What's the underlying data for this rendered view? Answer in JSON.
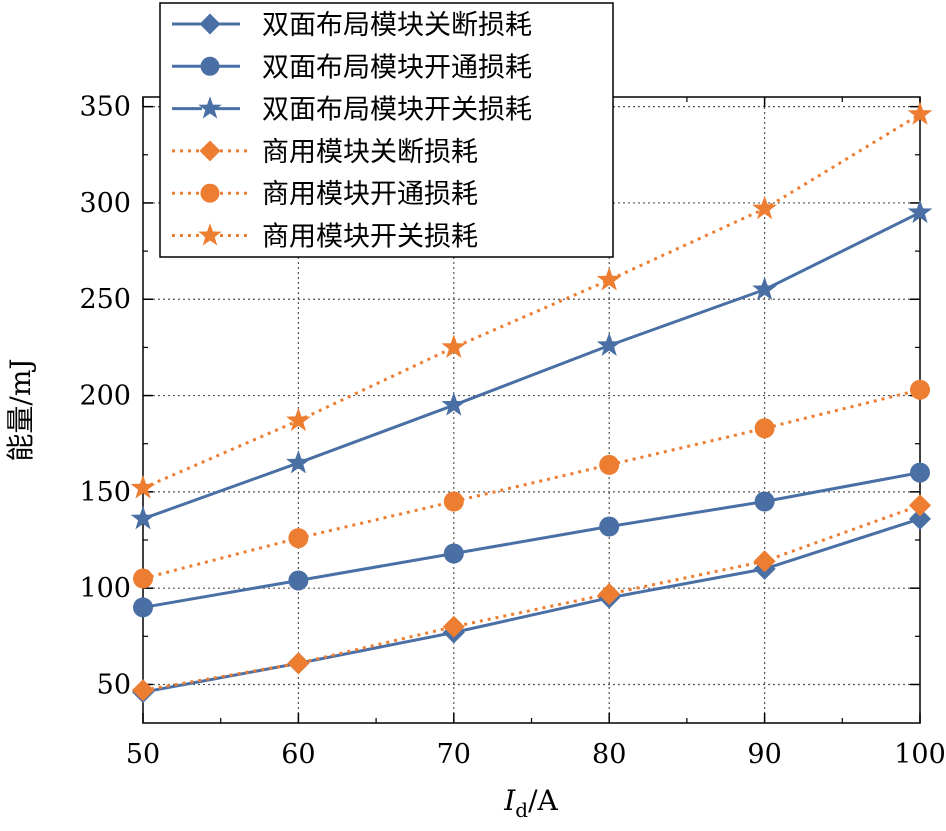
{
  "chart_data": {
    "type": "line",
    "x": [
      50,
      60,
      70,
      80,
      90,
      100
    ],
    "xlim": [
      50,
      100
    ],
    "ylim": [
      30,
      355
    ],
    "xticks": [
      50,
      60,
      70,
      80,
      90,
      100
    ],
    "yticks": [
      50,
      100,
      150,
      200,
      250,
      300,
      350
    ],
    "xlabel_main": "I",
    "xlabel_sub": "d",
    "xlabel_unit": "/A",
    "ylabel": "能量/mJ",
    "grid": true,
    "legend_position": "top-left",
    "series": [
      {
        "name": "双面布局模块关断损耗",
        "color": "#4a6fa5",
        "dash": "solid",
        "marker": "diamond",
        "values": [
          46,
          61,
          77,
          95,
          110,
          136
        ]
      },
      {
        "name": "双面布局模块开通损耗",
        "color": "#4a6fa5",
        "dash": "solid",
        "marker": "circle",
        "values": [
          90,
          104,
          118,
          132,
          145,
          160
        ]
      },
      {
        "name": "双面布局模块开关损耗",
        "color": "#4a6fa5",
        "dash": "solid",
        "marker": "star",
        "values": [
          136,
          165,
          195,
          226,
          255,
          295
        ]
      },
      {
        "name": "商用模块关断损耗",
        "color": "#ed7d31",
        "dash": "dotted",
        "marker": "diamond",
        "values": [
          47,
          61,
          80,
          97,
          114,
          143
        ]
      },
      {
        "name": "商用模块开通损耗",
        "color": "#ed7d31",
        "dash": "dotted",
        "marker": "circle",
        "values": [
          105,
          126,
          145,
          164,
          183,
          203
        ]
      },
      {
        "name": "商用模块开关损耗",
        "color": "#ed7d31",
        "dash": "dotted",
        "marker": "star",
        "values": [
          152,
          187,
          225,
          260,
          297,
          346
        ]
      }
    ]
  }
}
